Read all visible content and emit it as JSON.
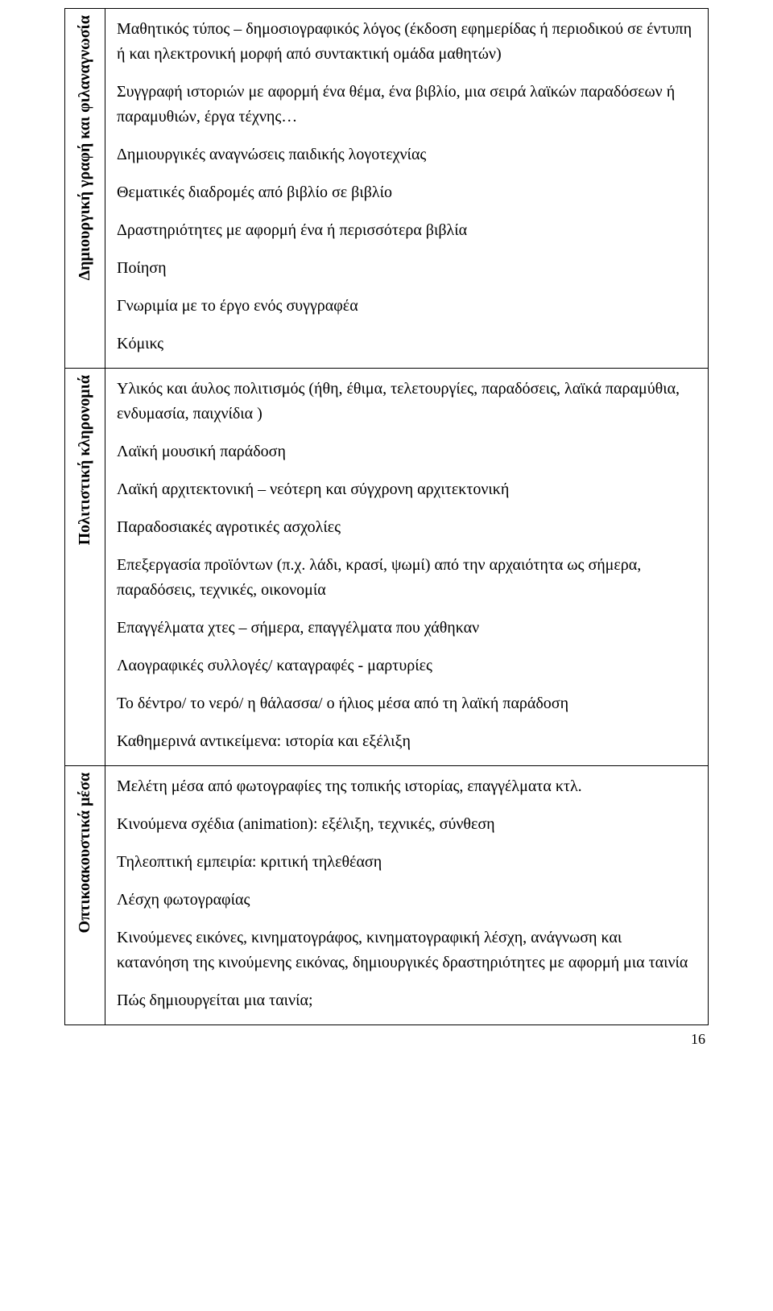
{
  "rows": [
    {
      "label": "Δημιουργική γραφή και φιλαναγνωσία",
      "paragraphs": [
        "Μαθητικός τύπος – δημοσιογραφικός λόγος (έκδοση εφημερίδας ή περιοδικού σε έντυπη ή και ηλεκτρονική μορφή από συντακτική ομάδα μαθητών)",
        "Συγγραφή ιστοριών με αφορμή ένα θέμα, ένα βιβλίο, μια σειρά λαϊκών παραδόσεων ή παραμυθιών, έργα τέχνης…",
        "Δημιουργικές αναγνώσεις παιδικής λογοτεχνίας",
        "Θεματικές διαδρομές από βιβλίο σε βιβλίο",
        "Δραστηριότητες με αφορμή ένα ή περισσότερα βιβλία",
        "Ποίηση",
        "Γνωριμία με το έργο ενός συγγραφέα",
        "Κόμικς"
      ]
    },
    {
      "label": "Πολιτιστική κληρονομιά",
      "paragraphs": [
        "Υλικός και άυλος πολιτισμός (ήθη, έθιμα, τελετουργίες, παραδόσεις, λαϊκά παραμύθια, ενδυμασία, παιχνίδια )",
        "Λαϊκή μουσική παράδοση",
        "Λαϊκή αρχιτεκτονική – νεότερη και σύγχρονη αρχιτεκτονική",
        "Παραδοσιακές αγροτικές ασχολίες",
        "Επεξεργασία προϊόντων (π.χ. λάδι, κρασί, ψωμί) από την αρχαιότητα ως σήμερα, παραδόσεις, τεχνικές, οικονομία",
        "Επαγγέλματα χτες – σήμερα, επαγγέλματα που χάθηκαν",
        "Λαογραφικές συλλογές/ καταγραφές - μαρτυρίες",
        "Το δέντρο/ το νερό/ η θάλασσα/ ο ήλιος μέσα από τη λαϊκή παράδοση",
        "Καθημερινά αντικείμενα: ιστορία και εξέλιξη"
      ]
    },
    {
      "label": "Οπτικοακουστικά μέσα",
      "paragraphs": [
        "Μελέτη μέσα από φωτογραφίες της τοπικής ιστορίας, επαγγέλματα κτλ.",
        "Κινούμενα σχέδια (animation): εξέλιξη, τεχνικές, σύνθεση",
        "Τηλεοπτική εμπειρία: κριτική τηλεθέαση",
        "Λέσχη φωτογραφίας",
        "Κινούμενες εικόνες, κινηματογράφος, κινηματογραφική λέσχη, ανάγνωση και κατανόηση της κινούμενης εικόνας, δημιουργικές δραστηριότητες με αφορμή μια ταινία",
        "Πώς δημιουργείται μια ταινία;"
      ]
    }
  ],
  "pageNumber": "16"
}
